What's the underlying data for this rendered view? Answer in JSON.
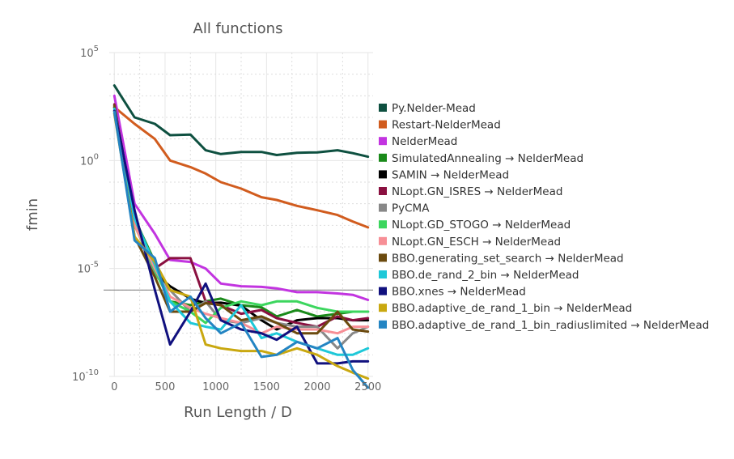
{
  "chart_data": {
    "type": "line",
    "title": "All functions",
    "xlabel": "Run Length / D",
    "ylabel": "fmin",
    "x_scale": "linear",
    "y_scale": "log",
    "xlim": [
      -50,
      2550
    ],
    "ylim": [
      1e-10,
      100000
    ],
    "x_ticks": [
      0,
      500,
      1000,
      1500,
      2000,
      2500
    ],
    "x_tick_labels": [
      "0",
      "500",
      "1000",
      "1500",
      "2000",
      "2500"
    ],
    "y_ticks": [
      1e-10,
      1e-05,
      1,
      100000
    ],
    "y_tick_labels": [
      {
        "base": "10",
        "exp": "-10"
      },
      {
        "base": "10",
        "exp": "-5"
      },
      {
        "base": "10",
        "exp": "0"
      },
      {
        "base": "10",
        "exp": "5"
      }
    ],
    "grid": true,
    "legend_position": "right",
    "reference_line": 1e-06,
    "x": [
      0,
      200,
      400,
      550,
      750,
      900,
      1050,
      1250,
      1450,
      1600,
      1800,
      2000,
      2200,
      2350,
      2500
    ],
    "series": [
      {
        "name": "Py.Nelder-Mead",
        "color": "#0e5040",
        "values": [
          3000,
          100,
          50,
          15,
          16,
          3,
          2,
          2.5,
          2.5,
          1.8,
          2.3,
          2.4,
          3,
          2.2,
          1.5
        ]
      },
      {
        "name": "Restart-NelderMead",
        "color": "#d15c1e",
        "values": [
          300,
          50,
          10,
          1,
          0.5,
          0.25,
          0.1,
          0.05,
          0.02,
          0.015,
          0.008,
          0.005,
          0.003,
          0.0015,
          0.0008
        ]
      },
      {
        "name": "NelderMead",
        "color": "#c234e0",
        "values": [
          1000,
          0.01,
          0.0004,
          2.5e-05,
          2e-05,
          1e-05,
          2e-06,
          1.5e-06,
          1.4e-06,
          1.2e-06,
          8e-07,
          8e-07,
          7e-07,
          6e-07,
          3.5e-07
        ]
      },
      {
        "name": "SimulatedAnnealing → NelderMead",
        "color": "#1a8a1a",
        "values": [
          200,
          0.002,
          2e-05,
          3e-07,
          2e-07,
          3e-07,
          4e-07,
          2e-07,
          1.6e-07,
          6e-08,
          1.2e-07,
          6e-08,
          8e-08,
          1e-07,
          1e-07
        ]
      },
      {
        "name": "SAMIN → NelderMead",
        "color": "#000000",
        "values": [
          300,
          0.003,
          6e-06,
          1.5e-06,
          4e-07,
          2.5e-07,
          2.6e-07,
          1.9e-07,
          4e-08,
          1.5e-08,
          4e-08,
          5e-08,
          5e-08,
          4e-08,
          4e-08
        ]
      },
      {
        "name": "NLopt.GN_ISRES → NelderMead",
        "color": "#8a1040",
        "values": [
          400,
          0.001,
          1e-05,
          3e-05,
          3e-05,
          3e-07,
          2e-07,
          8e-08,
          1.2e-07,
          5e-08,
          3e-08,
          2e-08,
          6e-08,
          4e-08,
          5e-08
        ]
      },
      {
        "name": "PyCMA",
        "color": "#888888",
        "values": [
          150,
          0.002,
          5e-06,
          1e-06,
          1e-07,
          3e-07,
          4e-08,
          3e-08,
          5e-08,
          3e-08,
          2e-08,
          2e-08,
          2e-09,
          1e-08,
          2e-08
        ]
      },
      {
        "name": "NLopt.GD_STOGO → NelderMead",
        "color": "#3cd65e",
        "values": [
          250,
          0.001,
          8e-06,
          3e-07,
          1e-07,
          3e-08,
          1.5e-07,
          3e-07,
          2e-07,
          3e-07,
          3e-07,
          1.5e-07,
          1e-07,
          1e-07,
          1e-07
        ]
      },
      {
        "name": "NLopt.GN_ESCH → NelderMead",
        "color": "#f78f96",
        "values": [
          200,
          0.001,
          1e-05,
          5e-07,
          1.5e-07,
          8e-08,
          5e-08,
          3e-08,
          1e-08,
          2e-08,
          1.5e-08,
          1.5e-08,
          1e-08,
          2e-08,
          2e-08
        ]
      },
      {
        "name": "BBO.generating_set_search → NelderMead",
        "color": "#6b4a0e",
        "values": [
          350,
          0.0003,
          4e-06,
          1e-07,
          1e-07,
          2.5e-07,
          2e-07,
          4e-08,
          6e-08,
          3e-08,
          1e-08,
          1e-08,
          1e-07,
          1.5e-08,
          1.2e-08
        ]
      },
      {
        "name": "BBO.de_rand_2_bin → NelderMead",
        "color": "#1ec8d8",
        "values": [
          250,
          0.002,
          1.5e-05,
          3e-07,
          3e-08,
          2e-08,
          1.5e-08,
          2e-07,
          6e-09,
          1e-08,
          4e-09,
          2e-09,
          1e-09,
          1e-09,
          2e-09
        ]
      },
      {
        "name": "BBO.xnes → NelderMead",
        "color": "#10107e",
        "values": [
          200,
          0.005,
          1e-06,
          3e-09,
          1e-07,
          2e-06,
          4e-08,
          1.5e-08,
          1e-08,
          5e-09,
          2e-08,
          4e-10,
          4e-10,
          5e-10,
          5e-10
        ]
      },
      {
        "name": "BBO.adaptive_de_rand_1_bin → NelderMead",
        "color": "#c9a810",
        "values": [
          150,
          0.0003,
          2e-05,
          1e-06,
          5e-07,
          3e-09,
          2e-09,
          1.5e-09,
          1.5e-09,
          1e-09,
          2e-09,
          1e-09,
          3e-10,
          1.5e-10,
          8e-11
        ]
      },
      {
        "name": "BBO.adaptive_de_rand_1_bin_radiuslimited → NelderMead",
        "color": "#2485c3",
        "values": [
          180,
          0.0002,
          3e-05,
          1e-07,
          5e-07,
          5e-08,
          1e-08,
          3e-08,
          8e-10,
          1e-09,
          4e-09,
          2e-09,
          6e-09,
          2e-10,
          3e-11
        ]
      }
    ]
  }
}
